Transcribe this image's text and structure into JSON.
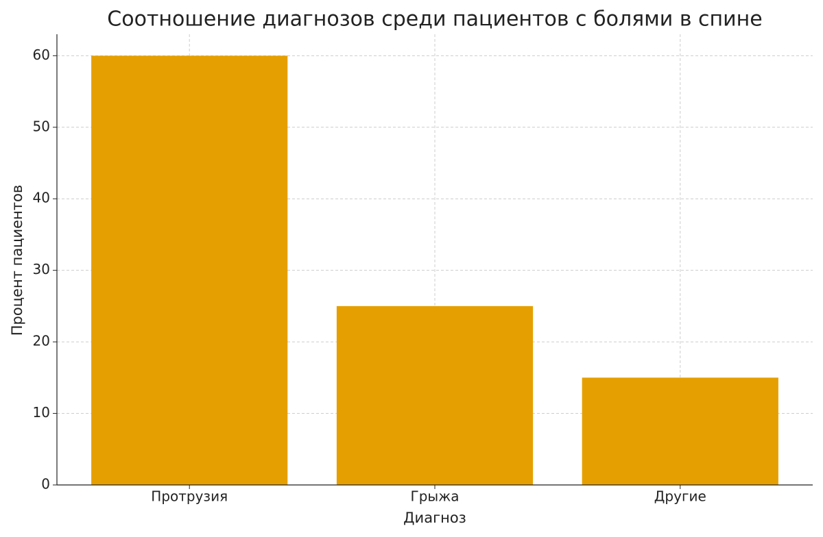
{
  "chart_data": {
    "type": "bar",
    "title": "Соотношение диагнозов среди пациентов с болями в спине",
    "x_label": "Диагноз",
    "y_label": "Процент пациентов",
    "categories": [
      "Протрузия",
      "Грыжа",
      "Другие"
    ],
    "values": [
      60,
      25,
      15
    ],
    "color": "#E69F00",
    "ylim": [
      0,
      63
    ],
    "yticks": [
      0,
      10,
      20,
      30,
      40,
      50,
      60
    ],
    "grid": true
  }
}
